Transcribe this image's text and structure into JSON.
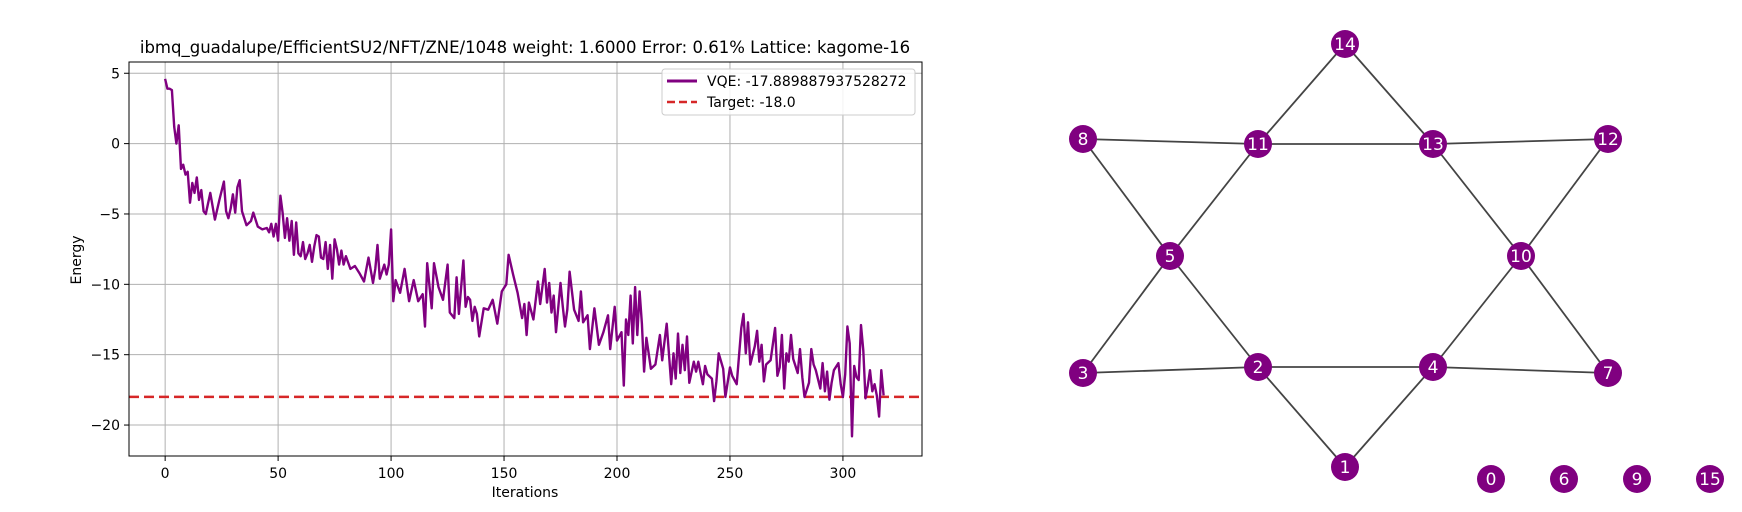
{
  "chart_data": [
    {
      "type": "line",
      "title": "ibmq_guadalupe/EfficientSU2/NFT/ZNE/1048 weight: 1.6000 Error: 0.61% Lattice: kagome-16",
      "xlabel": "Iterations",
      "ylabel": "Energy",
      "xlim": [
        -16,
        335
      ],
      "ylim": [
        -22.2,
        5.8
      ],
      "xticks": [
        0,
        50,
        100,
        150,
        200,
        250,
        300
      ],
      "yticks": [
        5,
        0,
        -5,
        -10,
        -15,
        -20
      ],
      "grid": true,
      "legend_position": "upper right",
      "series": [
        {
          "name": "VQE: -17.889887937528272",
          "color": "#800080",
          "style": "solid",
          "anchors": [
            [
              0,
              4.6
            ],
            [
              1,
              3.9
            ],
            [
              2,
              3.9
            ],
            [
              3,
              3.8
            ],
            [
              4,
              1.2
            ],
            [
              5,
              0.0
            ],
            [
              6,
              1.3
            ],
            [
              7,
              -1.8
            ],
            [
              8,
              -1.5
            ],
            [
              9,
              -2.2
            ],
            [
              10,
              -2.0
            ],
            [
              11,
              -4.2
            ],
            [
              12,
              -2.8
            ],
            [
              13,
              -3.5
            ],
            [
              14,
              -2.4
            ],
            [
              15,
              -4.0
            ],
            [
              16,
              -3.3
            ],
            [
              17,
              -4.8
            ],
            [
              18,
              -5.0
            ],
            [
              20,
              -3.5
            ],
            [
              22,
              -5.4
            ],
            [
              24,
              -4.0
            ],
            [
              26,
              -2.7
            ],
            [
              27,
              -4.8
            ],
            [
              28,
              -5.3
            ],
            [
              29,
              -4.6
            ],
            [
              30,
              -3.6
            ],
            [
              31,
              -4.9
            ],
            [
              32,
              -3.1
            ],
            [
              33,
              -2.6
            ],
            [
              34,
              -4.8
            ],
            [
              36,
              -5.8
            ],
            [
              38,
              -5.5
            ],
            [
              39,
              -4.9
            ],
            [
              41,
              -5.9
            ],
            [
              43,
              -6.1
            ],
            [
              45,
              -6.0
            ],
            [
              46,
              -6.3
            ],
            [
              47,
              -5.7
            ],
            [
              48,
              -6.6
            ],
            [
              49,
              -5.7
            ],
            [
              50,
              -6.9
            ],
            [
              51,
              -3.7
            ],
            [
              52,
              -4.9
            ],
            [
              53,
              -6.7
            ],
            [
              54,
              -5.3
            ],
            [
              55,
              -6.9
            ],
            [
              56,
              -5.5
            ],
            [
              57,
              -7.9
            ],
            [
              58,
              -5.6
            ],
            [
              59,
              -7.8
            ],
            [
              60,
              -8.0
            ],
            [
              61,
              -7.0
            ],
            [
              62,
              -8.2
            ],
            [
              63,
              -7.8
            ],
            [
              64,
              -7.2
            ],
            [
              65,
              -8.4
            ],
            [
              66,
              -7.3
            ],
            [
              67,
              -6.5
            ],
            [
              68,
              -6.6
            ],
            [
              69,
              -8.1
            ],
            [
              70,
              -8.2
            ],
            [
              71,
              -7.0
            ],
            [
              72,
              -8.9
            ],
            [
              73,
              -7.2
            ],
            [
              74,
              -9.6
            ],
            [
              75,
              -6.8
            ],
            [
              76,
              -7.5
            ],
            [
              77,
              -8.6
            ],
            [
              78,
              -7.6
            ],
            [
              79,
              -8.6
            ],
            [
              80,
              -8.0
            ],
            [
              82,
              -8.9
            ],
            [
              84,
              -8.7
            ],
            [
              86,
              -9.2
            ],
            [
              88,
              -9.8
            ],
            [
              90,
              -8.1
            ],
            [
              92,
              -9.9
            ],
            [
              93,
              -8.9
            ],
            [
              94,
              -7.2
            ],
            [
              95,
              -9.6
            ],
            [
              97,
              -8.6
            ],
            [
              98,
              -9.3
            ],
            [
              99,
              -8.6
            ],
            [
              100,
              -6.1
            ],
            [
              101,
              -11.2
            ],
            [
              102,
              -9.7
            ],
            [
              104,
              -10.6
            ],
            [
              106,
              -8.9
            ],
            [
              108,
              -11.2
            ],
            [
              110,
              -9.7
            ],
            [
              112,
              -11.2
            ],
            [
              114,
              -10.7
            ],
            [
              115,
              -13.0
            ],
            [
              116,
              -8.5
            ],
            [
              118,
              -11.7
            ],
            [
              119,
              -8.5
            ],
            [
              121,
              -10.2
            ],
            [
              123,
              -11.1
            ],
            [
              125,
              -8.6
            ],
            [
              126,
              -12.0
            ],
            [
              128,
              -12.4
            ],
            [
              129,
              -9.5
            ],
            [
              130,
              -12.1
            ],
            [
              132,
              -8.3
            ],
            [
              133,
              -11.6
            ],
            [
              134,
              -10.9
            ],
            [
              135,
              -11.1
            ],
            [
              136,
              -12.6
            ],
            [
              137,
              -11.6
            ],
            [
              138,
              -12.1
            ],
            [
              139,
              -13.7
            ],
            [
              141,
              -11.7
            ],
            [
              143,
              -11.8
            ],
            [
              145,
              -11.1
            ],
            [
              147,
              -12.8
            ],
            [
              149,
              -10.5
            ],
            [
              151,
              -10.0
            ],
            [
              152,
              -7.9
            ],
            [
              154,
              -9.3
            ],
            [
              156,
              -10.6
            ],
            [
              158,
              -12.4
            ],
            [
              159,
              -11.4
            ],
            [
              160,
              -13.6
            ],
            [
              161,
              -11.3
            ],
            [
              163,
              -12.5
            ],
            [
              165,
              -9.8
            ],
            [
              166,
              -11.4
            ],
            [
              168,
              -8.9
            ],
            [
              169,
              -11.3
            ],
            [
              170,
              -9.9
            ],
            [
              171,
              -12.0
            ],
            [
              172,
              -10.8
            ],
            [
              173,
              -13.4
            ],
            [
              175,
              -9.9
            ],
            [
              176,
              -11.6
            ],
            [
              177,
              -13.0
            ],
            [
              178,
              -11.8
            ],
            [
              179,
              -9.1
            ],
            [
              181,
              -11.8
            ],
            [
              183,
              -12.6
            ],
            [
              184,
              -10.5
            ],
            [
              185,
              -12.7
            ],
            [
              187,
              -12.2
            ],
            [
              188,
              -14.6
            ],
            [
              190,
              -11.7
            ],
            [
              192,
              -14.3
            ],
            [
              194,
              -13.4
            ],
            [
              196,
              -12.2
            ],
            [
              197,
              -14.6
            ],
            [
              199,
              -11.6
            ],
            [
              200,
              -14.0
            ],
            [
              202,
              -13.4
            ],
            [
              203,
              -17.2
            ],
            [
              204,
              -12.5
            ],
            [
              205,
              -13.6
            ],
            [
              206,
              -10.8
            ],
            [
              207,
              -14.2
            ],
            [
              208,
              -10.2
            ],
            [
              209,
              -13.6
            ],
            [
              210,
              -10.5
            ],
            [
              211,
              -12.8
            ],
            [
              212,
              -16.2
            ],
            [
              213,
              -13.8
            ],
            [
              215,
              -16.0
            ],
            [
              217,
              -15.7
            ],
            [
              219,
              -13.6
            ],
            [
              220,
              -15.4
            ],
            [
              222,
              -12.8
            ],
            [
              224,
              -17.1
            ],
            [
              225,
              -14.9
            ],
            [
              226,
              -16.7
            ],
            [
              227,
              -13.5
            ],
            [
              228,
              -16.3
            ],
            [
              229,
              -14.3
            ],
            [
              230,
              -16.1
            ],
            [
              231,
              -13.7
            ],
            [
              232,
              -17.0
            ],
            [
              234,
              -15.5
            ],
            [
              235,
              -16.2
            ],
            [
              236,
              -15.5
            ],
            [
              238,
              -17.1
            ],
            [
              239,
              -15.8
            ],
            [
              240,
              -16.4
            ],
            [
              242,
              -16.7
            ],
            [
              243,
              -18.3
            ],
            [
              244,
              -16.9
            ],
            [
              245,
              -14.9
            ],
            [
              247,
              -16.0
            ],
            [
              248,
              -18.0
            ],
            [
              250,
              -15.9
            ],
            [
              251,
              -16.5
            ],
            [
              253,
              -17.1
            ],
            [
              255,
              -13.1
            ],
            [
              256,
              -12.1
            ],
            [
              257,
              -14.9
            ],
            [
              258,
              -12.7
            ],
            [
              259,
              -15.7
            ],
            [
              261,
              -14.4
            ],
            [
              262,
              -13.3
            ],
            [
              263,
              -15.5
            ],
            [
              264,
              -14.3
            ],
            [
              265,
              -16.9
            ],
            [
              266,
              -15.7
            ],
            [
              268,
              -15.4
            ],
            [
              270,
              -13.1
            ],
            [
              271,
              -16.5
            ],
            [
              272,
              -15.9
            ],
            [
              273,
              -13.6
            ],
            [
              274,
              -17.4
            ],
            [
              275,
              -14.9
            ],
            [
              276,
              -15.5
            ],
            [
              277,
              -13.6
            ],
            [
              278,
              -15.3
            ],
            [
              280,
              -16.3
            ],
            [
              281,
              -14.6
            ],
            [
              282,
              -16.6
            ],
            [
              283,
              -18.0
            ],
            [
              285,
              -17.0
            ],
            [
              286,
              -14.6
            ],
            [
              287,
              -15.7
            ],
            [
              288,
              -16.1
            ],
            [
              290,
              -17.4
            ],
            [
              291,
              -15.6
            ],
            [
              292,
              -17.6
            ],
            [
              293,
              -16.2
            ],
            [
              294,
              -18.2
            ],
            [
              295,
              -17.0
            ],
            [
              296,
              -16.1
            ],
            [
              298,
              -15.6
            ],
            [
              299,
              -17.1
            ],
            [
              300,
              -18.0
            ],
            [
              301,
              -16.4
            ],
            [
              302,
              -13.0
            ],
            [
              303,
              -14.2
            ],
            [
              304,
              -20.8
            ],
            [
              305,
              -15.8
            ],
            [
              306,
              -16.6
            ],
            [
              307,
              -16.8
            ],
            [
              308,
              -12.9
            ],
            [
              309,
              -14.7
            ],
            [
              310,
              -18.1
            ],
            [
              311,
              -17.2
            ],
            [
              312,
              -16.1
            ],
            [
              313,
              -17.6
            ],
            [
              314,
              -17.1
            ],
            [
              315,
              -17.9
            ],
            [
              316,
              -19.4
            ],
            [
              317,
              -16.1
            ],
            [
              318,
              -17.89
            ]
          ]
        },
        {
          "name": "Target: -18.0",
          "color": "#d62728",
          "style": "dashed",
          "value": -18.0
        }
      ]
    },
    {
      "type": "graph",
      "node_color": "#800080",
      "edge_color": "#444444",
      "nodes": [
        "0",
        "1",
        "2",
        "3",
        "4",
        "5",
        "6",
        "7",
        "8",
        "9",
        "10",
        "11",
        "12",
        "13",
        "14",
        "15"
      ],
      "edges": [
        [
          "14",
          "11"
        ],
        [
          "14",
          "13"
        ],
        [
          "8",
          "11"
        ],
        [
          "11",
          "13"
        ],
        [
          "13",
          "12"
        ],
        [
          "8",
          "5"
        ],
        [
          "11",
          "5"
        ],
        [
          "13",
          "10"
        ],
        [
          "12",
          "10"
        ],
        [
          "5",
          "3"
        ],
        [
          "5",
          "2"
        ],
        [
          "10",
          "4"
        ],
        [
          "10",
          "7"
        ],
        [
          "3",
          "2"
        ],
        [
          "2",
          "4"
        ],
        [
          "4",
          "7"
        ],
        [
          "2",
          "1"
        ],
        [
          "4",
          "1"
        ]
      ]
    }
  ]
}
